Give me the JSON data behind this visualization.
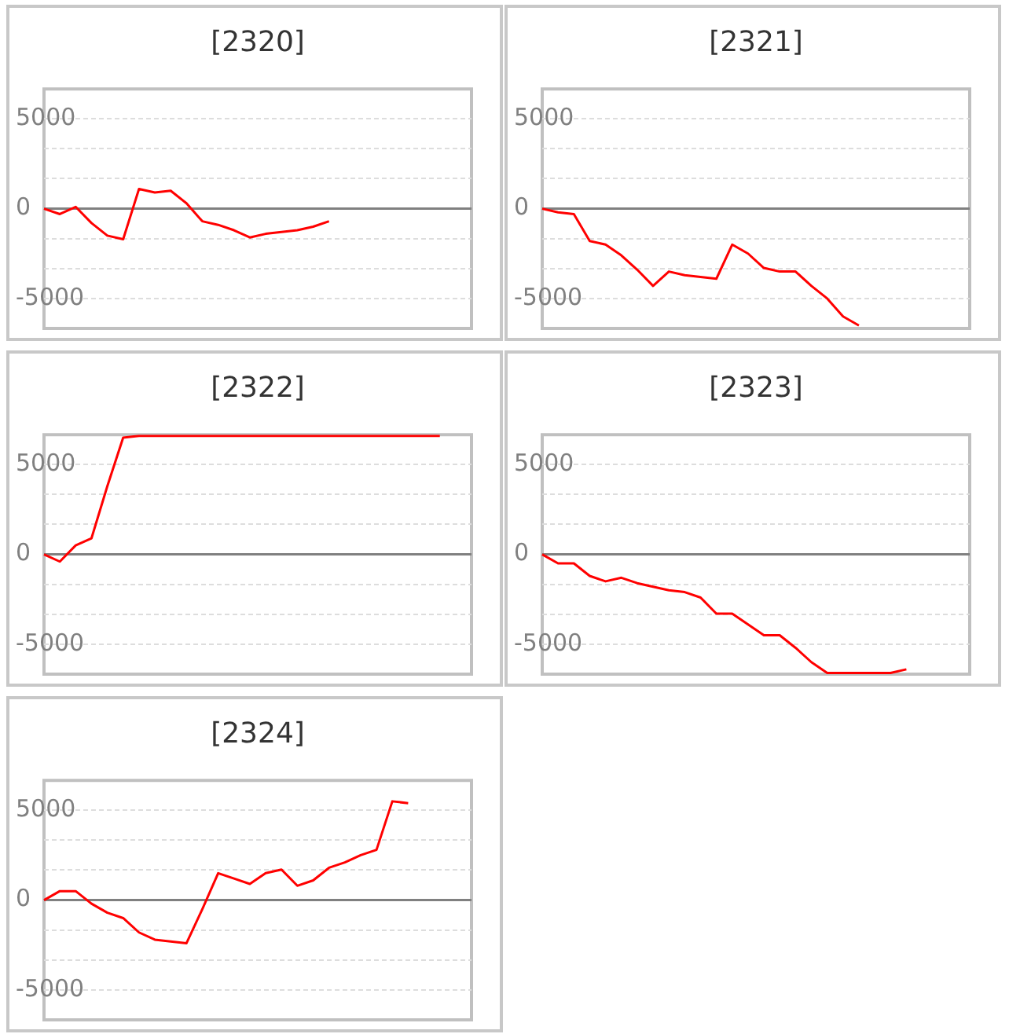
{
  "chart_data": [
    {
      "type": "line",
      "title": "[2320]",
      "categories": [
        null,
        null,
        null,
        null,
        null,
        null,
        null,
        null,
        null,
        null,
        null,
        null,
        null,
        null,
        null,
        null,
        null,
        null,
        null,
        null,
        null,
        null,
        null,
        null,
        null,
        null,
        null,
        null
      ],
      "series": [
        {
          "color": "#ff0000",
          "values": [
            0,
            -300,
            100,
            -800,
            -1500,
            -1700,
            1100,
            900,
            1000,
            300,
            -700,
            -900,
            -1200,
            -1600,
            -1400,
            -1300,
            -1200,
            -1000,
            -700,
            null,
            null,
            null,
            null,
            null,
            null,
            null,
            null,
            null
          ]
        }
      ],
      "ylim": [
        -6667,
        6667
      ],
      "yticks": [
        {
          "value": 5000,
          "label": "5000"
        },
        {
          "value": 3333,
          "label": null
        },
        {
          "value": 1667,
          "label": null
        },
        {
          "value": 0,
          "label": "0"
        },
        {
          "value": -1667,
          "label": null
        },
        {
          "value": -3333,
          "label": null
        },
        {
          "value": -5000,
          "label": "-5000"
        }
      ],
      "grid": "y",
      "marker": "none",
      "tick_labels": "y",
      "ref_lines": [
        {
          "axis": "y",
          "value": 0,
          "color": "#808080"
        }
      ]
    },
    {
      "type": "line",
      "title": "[2321]",
      "categories": [
        null,
        null,
        null,
        null,
        null,
        null,
        null,
        null,
        null,
        null,
        null,
        null,
        null,
        null,
        null,
        null,
        null,
        null,
        null,
        null,
        null,
        null,
        null,
        null,
        null,
        null,
        null,
        null
      ],
      "series": [
        {
          "color": "#ff0000",
          "values": [
            0,
            -200,
            -300,
            -1800,
            -2000,
            -2600,
            -3400,
            -4300,
            -3500,
            -3700,
            -3800,
            -3900,
            -2000,
            -2500,
            -3300,
            -3500,
            -3500,
            -4300,
            -5000,
            -6000,
            -6500,
            null,
            null,
            null,
            null,
            null,
            null,
            null
          ]
        }
      ],
      "ylim": [
        -6667,
        6667
      ],
      "yticks": [
        {
          "value": 5000,
          "label": "5000"
        },
        {
          "value": 3333,
          "label": null
        },
        {
          "value": 1667,
          "label": null
        },
        {
          "value": 0,
          "label": "0"
        },
        {
          "value": -1667,
          "label": null
        },
        {
          "value": -3333,
          "label": null
        },
        {
          "value": -5000,
          "label": "-5000"
        }
      ],
      "grid": "y",
      "marker": "none",
      "tick_labels": "y",
      "ref_lines": [
        {
          "axis": "y",
          "value": 0,
          "color": "#808080"
        }
      ]
    },
    {
      "type": "line",
      "title": "[2322]",
      "categories": [
        null,
        null,
        null,
        null,
        null,
        null,
        null,
        null,
        null,
        null,
        null,
        null,
        null,
        null,
        null,
        null,
        null,
        null,
        null,
        null,
        null,
        null,
        null,
        null,
        null,
        null,
        null,
        null
      ],
      "series": [
        {
          "color": "#ff0000",
          "values": [
            0,
            -400,
            500,
            900,
            3800,
            6500,
            6600,
            6600,
            6600,
            6600,
            6600,
            6600,
            6600,
            6600,
            6600,
            6600,
            6600,
            6600,
            6600,
            6600,
            6600,
            6600,
            6600,
            6600,
            6600,
            6600,
            null,
            null
          ]
        }
      ],
      "ylim": [
        -6667,
        6667
      ],
      "yticks": [
        {
          "value": 5000,
          "label": "5000"
        },
        {
          "value": 3333,
          "label": null
        },
        {
          "value": 1667,
          "label": null
        },
        {
          "value": 0,
          "label": "0"
        },
        {
          "value": -1667,
          "label": null
        },
        {
          "value": -3333,
          "label": null
        },
        {
          "value": -5000,
          "label": "-5000"
        }
      ],
      "grid": "y",
      "marker": "none",
      "tick_labels": "y",
      "ref_lines": [
        {
          "axis": "y",
          "value": 0,
          "color": "#808080"
        }
      ]
    },
    {
      "type": "line",
      "title": "[2323]",
      "categories": [
        null,
        null,
        null,
        null,
        null,
        null,
        null,
        null,
        null,
        null,
        null,
        null,
        null,
        null,
        null,
        null,
        null,
        null,
        null,
        null,
        null,
        null,
        null,
        null,
        null,
        null,
        null,
        null
      ],
      "series": [
        {
          "color": "#ff0000",
          "values": [
            0,
            -500,
            -500,
            -1200,
            -1500,
            -1300,
            -1600,
            -1800,
            -2000,
            -2100,
            -2400,
            -3300,
            -3300,
            -3900,
            -4500,
            -4500,
            -5200,
            -6000,
            -6600,
            -6600,
            -6600,
            -6600,
            -6600,
            -6400,
            null,
            null,
            null,
            null
          ]
        }
      ],
      "ylim": [
        -6667,
        6667
      ],
      "yticks": [
        {
          "value": 5000,
          "label": "5000"
        },
        {
          "value": 3333,
          "label": null
        },
        {
          "value": 1667,
          "label": null
        },
        {
          "value": 0,
          "label": "0"
        },
        {
          "value": -1667,
          "label": null
        },
        {
          "value": -3333,
          "label": null
        },
        {
          "value": -5000,
          "label": "-5000"
        }
      ],
      "grid": "y",
      "marker": "none",
      "tick_labels": "y",
      "ref_lines": [
        {
          "axis": "y",
          "value": 0,
          "color": "#808080"
        }
      ]
    },
    {
      "type": "line",
      "title": "[2324]",
      "categories": [
        null,
        null,
        null,
        null,
        null,
        null,
        null,
        null,
        null,
        null,
        null,
        null,
        null,
        null,
        null,
        null,
        null,
        null,
        null,
        null,
        null,
        null,
        null,
        null,
        null,
        null,
        null,
        null
      ],
      "series": [
        {
          "color": "#ff0000",
          "values": [
            0,
            500,
            500,
            -200,
            -700,
            -1000,
            -1800,
            -2200,
            -2300,
            -2400,
            -500,
            1500,
            1200,
            900,
            1500,
            1700,
            800,
            1100,
            1800,
            2100,
            2500,
            2800,
            5500,
            5400,
            null,
            null,
            null,
            null
          ]
        }
      ],
      "ylim": [
        -6667,
        6667
      ],
      "yticks": [
        {
          "value": 5000,
          "label": "5000"
        },
        {
          "value": 3333,
          "label": null
        },
        {
          "value": 1667,
          "label": null
        },
        {
          "value": 0,
          "label": "0"
        },
        {
          "value": -1667,
          "label": null
        },
        {
          "value": -3333,
          "label": null
        },
        {
          "value": -5000,
          "label": "-5000"
        }
      ],
      "grid": "y",
      "marker": "none",
      "tick_labels": "y",
      "ref_lines": [
        {
          "axis": "y",
          "value": 0,
          "color": "#808080"
        }
      ]
    }
  ]
}
